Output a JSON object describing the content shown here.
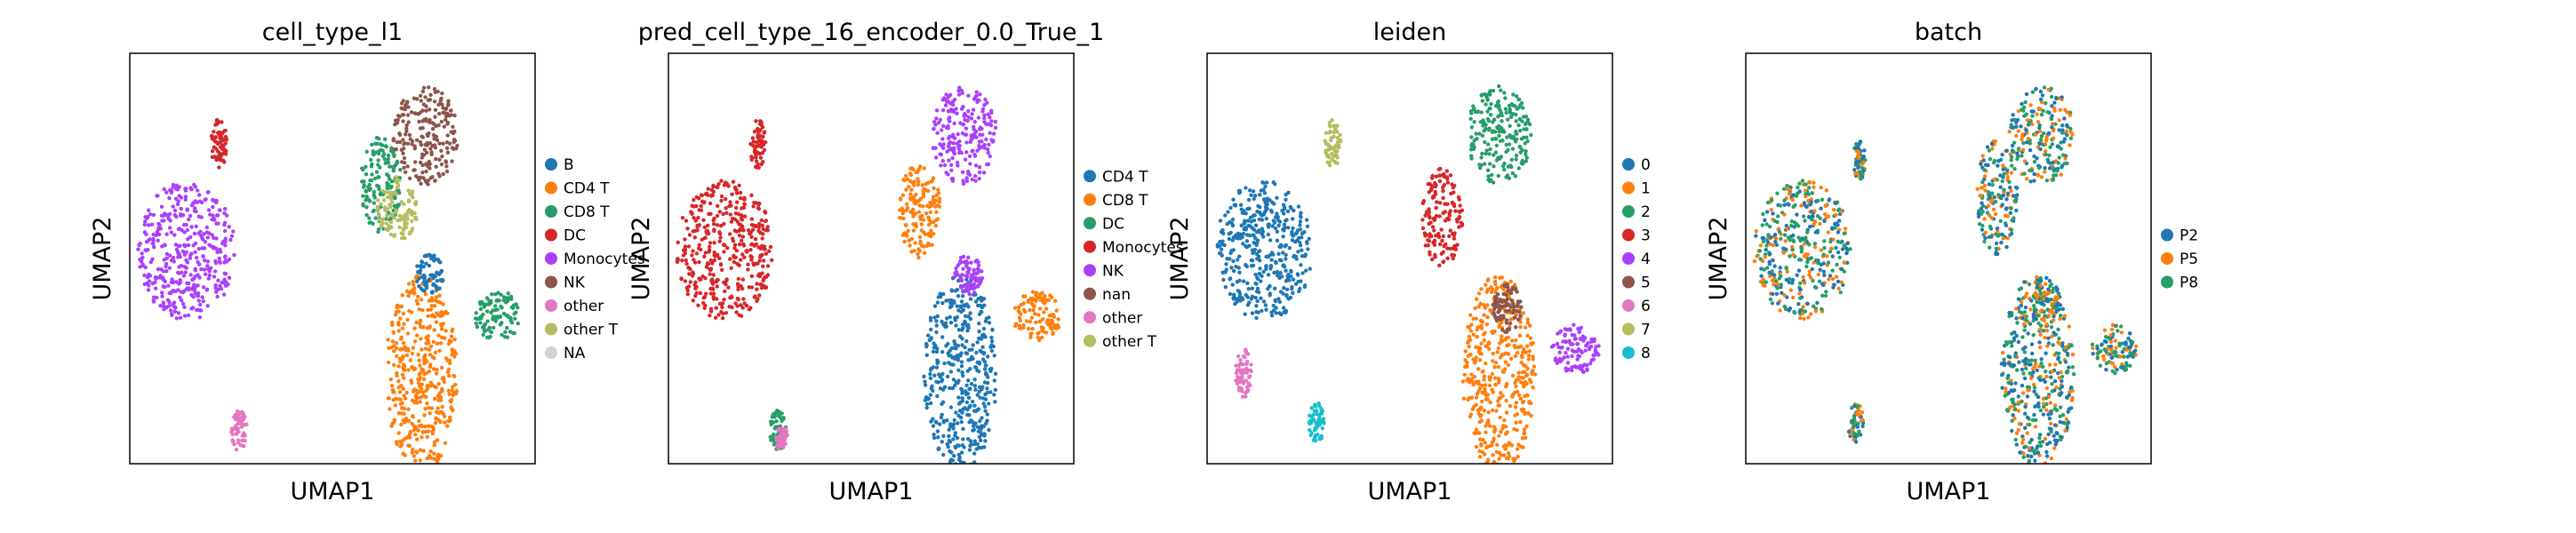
{
  "figure": {
    "xlabel": "UMAP1",
    "ylabel": "UMAP2"
  },
  "chart_data": [
    {
      "type": "scatter",
      "title": "cell_type_l1",
      "xlabel": "UMAP1",
      "ylabel": "UMAP2",
      "legend_placement": "right",
      "series": [
        {
          "name": "B",
          "color": "#1f77b4"
        },
        {
          "name": "CD4 T",
          "color": "#ff7f0e"
        },
        {
          "name": "CD8 T",
          "color": "#279e68"
        },
        {
          "name": "DC",
          "color": "#d62728"
        },
        {
          "name": "Monocytes",
          "color": "#aa40fc"
        },
        {
          "name": "NK",
          "color": "#8c564b"
        },
        {
          "name": "other",
          "color": "#e377c2"
        },
        {
          "name": "other T",
          "color": "#b5bd61"
        },
        {
          "name": "NA",
          "color": "#d3d3d3"
        }
      ],
      "clusters": [
        {
          "label": "Monocytes",
          "x": 0.14,
          "y": 0.52,
          "rx": 0.12,
          "ry": 0.17
        },
        {
          "label": "CD4 T",
          "x": 0.72,
          "y": 0.22,
          "rx": 0.09,
          "ry": 0.24
        },
        {
          "label": "CD8 T",
          "x": 0.62,
          "y": 0.68,
          "rx": 0.05,
          "ry": 0.12
        },
        {
          "label": "NK",
          "x": 0.73,
          "y": 0.8,
          "rx": 0.08,
          "ry": 0.12
        },
        {
          "label": "other T",
          "x": 0.66,
          "y": 0.62,
          "rx": 0.05,
          "ry": 0.08
        },
        {
          "label": "B",
          "x": 0.74,
          "y": 0.46,
          "rx": 0.035,
          "ry": 0.05
        },
        {
          "label": "CD8 T",
          "x": 0.91,
          "y": 0.36,
          "rx": 0.06,
          "ry": 0.06
        },
        {
          "label": "DC",
          "x": 0.22,
          "y": 0.78,
          "rx": 0.02,
          "ry": 0.06
        },
        {
          "label": "other",
          "x": 0.27,
          "y": 0.08,
          "rx": 0.02,
          "ry": 0.05
        }
      ]
    },
    {
      "type": "scatter",
      "title": "pred_cell_type_16_encoder_0.0_True_1",
      "xlabel": "UMAP1",
      "ylabel": "UMAP2",
      "legend_placement": "right",
      "series": [
        {
          "name": "CD4 T",
          "color": "#1f77b4"
        },
        {
          "name": "CD8 T",
          "color": "#ff7f0e"
        },
        {
          "name": "DC",
          "color": "#279e68"
        },
        {
          "name": "Monocytes",
          "color": "#d62728"
        },
        {
          "name": "NK",
          "color": "#aa40fc"
        },
        {
          "name": "nan",
          "color": "#8c564b"
        },
        {
          "name": "other",
          "color": "#e377c2"
        },
        {
          "name": "other T",
          "color": "#b5bd61"
        }
      ],
      "clusters": [
        {
          "label": "Monocytes",
          "x": 0.14,
          "y": 0.52,
          "rx": 0.12,
          "ry": 0.17
        },
        {
          "label": "CD4 T",
          "x": 0.72,
          "y": 0.22,
          "rx": 0.09,
          "ry": 0.24
        },
        {
          "label": "CD8 T",
          "x": 0.62,
          "y": 0.62,
          "rx": 0.05,
          "ry": 0.12
        },
        {
          "label": "NK",
          "x": 0.73,
          "y": 0.8,
          "rx": 0.08,
          "ry": 0.12
        },
        {
          "label": "CD8 T",
          "x": 0.91,
          "y": 0.36,
          "rx": 0.06,
          "ry": 0.06
        },
        {
          "label": "NK",
          "x": 0.74,
          "y": 0.46,
          "rx": 0.035,
          "ry": 0.05
        },
        {
          "label": "Monocytes",
          "x": 0.22,
          "y": 0.78,
          "rx": 0.02,
          "ry": 0.06
        },
        {
          "label": "DC",
          "x": 0.27,
          "y": 0.08,
          "rx": 0.02,
          "ry": 0.05
        },
        {
          "label": "other",
          "x": 0.28,
          "y": 0.06,
          "rx": 0.015,
          "ry": 0.03
        }
      ]
    },
    {
      "type": "scatter",
      "title": "leiden",
      "xlabel": "UMAP1",
      "ylabel": "UMAP2",
      "legend_placement": "right",
      "series": [
        {
          "name": "0",
          "color": "#1f77b4"
        },
        {
          "name": "1",
          "color": "#ff7f0e"
        },
        {
          "name": "2",
          "color": "#279e68"
        },
        {
          "name": "3",
          "color": "#d62728"
        },
        {
          "name": "4",
          "color": "#aa40fc"
        },
        {
          "name": "5",
          "color": "#8c564b"
        },
        {
          "name": "6",
          "color": "#e377c2"
        },
        {
          "name": "7",
          "color": "#b5bd61"
        },
        {
          "name": "8",
          "color": "#17becf"
        }
      ],
      "clusters": [
        {
          "label": "0",
          "x": 0.14,
          "y": 0.52,
          "rx": 0.12,
          "ry": 0.17
        },
        {
          "label": "1",
          "x": 0.72,
          "y": 0.22,
          "rx": 0.09,
          "ry": 0.24
        },
        {
          "label": "3",
          "x": 0.58,
          "y": 0.6,
          "rx": 0.05,
          "ry": 0.12
        },
        {
          "label": "2",
          "x": 0.72,
          "y": 0.8,
          "rx": 0.08,
          "ry": 0.12
        },
        {
          "label": "5",
          "x": 0.74,
          "y": 0.38,
          "rx": 0.035,
          "ry": 0.06
        },
        {
          "label": "4",
          "x": 0.91,
          "y": 0.28,
          "rx": 0.06,
          "ry": 0.06
        },
        {
          "label": "8",
          "x": 0.27,
          "y": 0.1,
          "rx": 0.02,
          "ry": 0.05
        },
        {
          "label": "6",
          "x": 0.09,
          "y": 0.22,
          "rx": 0.02,
          "ry": 0.06
        },
        {
          "label": "7",
          "x": 0.31,
          "y": 0.78,
          "rx": 0.02,
          "ry": 0.06
        }
      ]
    },
    {
      "type": "scatter",
      "title": "batch",
      "xlabel": "UMAP1",
      "ylabel": "UMAP2",
      "legend_placement": "right",
      "series": [
        {
          "name": "P2",
          "color": "#1f77b4"
        },
        {
          "name": "P5",
          "color": "#ff7f0e"
        },
        {
          "name": "P8",
          "color": "#279e68"
        }
      ],
      "clusters": [
        {
          "label": "mixed",
          "x": 0.14,
          "y": 0.52,
          "rx": 0.12,
          "ry": 0.17
        },
        {
          "label": "mixed",
          "x": 0.72,
          "y": 0.22,
          "rx": 0.09,
          "ry": 0.24
        },
        {
          "label": "mixed",
          "x": 0.62,
          "y": 0.65,
          "rx": 0.05,
          "ry": 0.14
        },
        {
          "label": "mixed",
          "x": 0.73,
          "y": 0.8,
          "rx": 0.08,
          "ry": 0.12
        },
        {
          "label": "mixed",
          "x": 0.74,
          "y": 0.4,
          "rx": 0.035,
          "ry": 0.05
        },
        {
          "label": "mixed",
          "x": 0.91,
          "y": 0.28,
          "rx": 0.06,
          "ry": 0.06
        },
        {
          "label": "mixed",
          "x": 0.27,
          "y": 0.1,
          "rx": 0.02,
          "ry": 0.05
        },
        {
          "label": "mixed",
          "x": 0.28,
          "y": 0.74,
          "rx": 0.015,
          "ry": 0.05
        }
      ]
    }
  ]
}
